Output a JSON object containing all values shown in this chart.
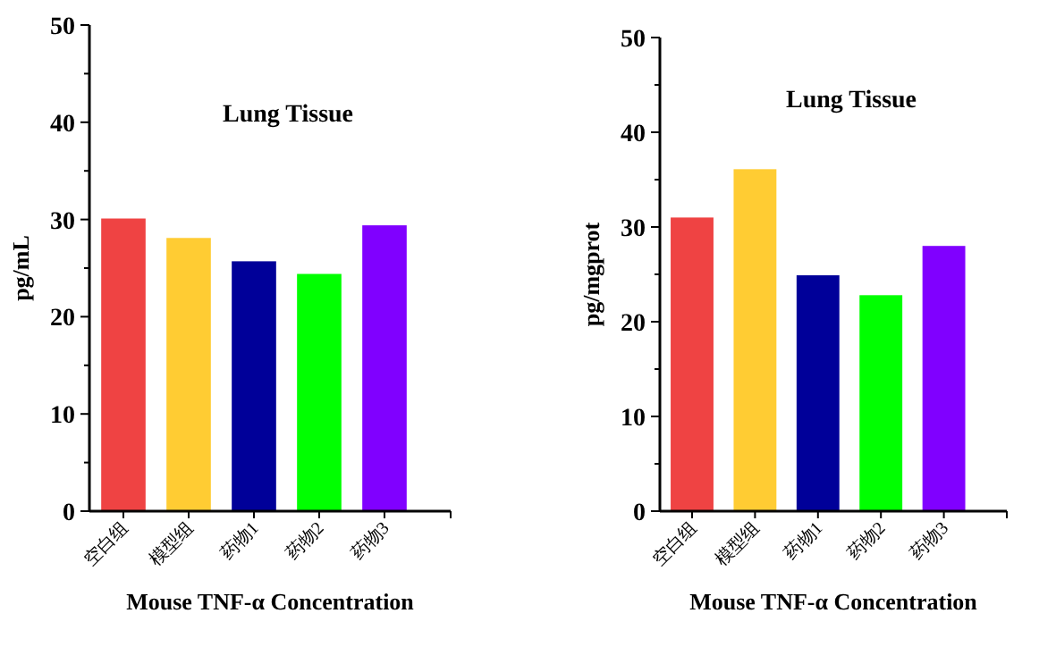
{
  "chart_data": [
    {
      "type": "bar",
      "title": "Lung Tissue",
      "xlabel": "Mouse TNF-α Concentration",
      "ylabel": "pg/mL",
      "categories": [
        "空白组",
        "模型组",
        "药物1",
        "药物2",
        "药物3"
      ],
      "values": [
        30.1,
        28.1,
        25.7,
        24.4,
        29.4
      ],
      "colors": [
        "#ef4343",
        "#ffcc33",
        "#000099",
        "#00ff00",
        "#8000ff"
      ],
      "ylim": [
        0,
        50
      ],
      "yticks": [
        0,
        10,
        20,
        30,
        40,
        50
      ]
    },
    {
      "type": "bar",
      "title": "Lung Tissue",
      "xlabel": "Mouse TNF-α Concentration",
      "ylabel": "pg/mgprot",
      "categories": [
        "空白组",
        "模型组",
        "药物1",
        "药物2",
        "药物3"
      ],
      "values": [
        31.0,
        36.1,
        24.9,
        22.8,
        28.0
      ],
      "colors": [
        "#ef4343",
        "#ffcc33",
        "#000099",
        "#00ff00",
        "#8000ff"
      ],
      "ylim": [
        0,
        50
      ],
      "yticks": [
        0,
        10,
        20,
        30,
        40,
        50
      ]
    }
  ]
}
